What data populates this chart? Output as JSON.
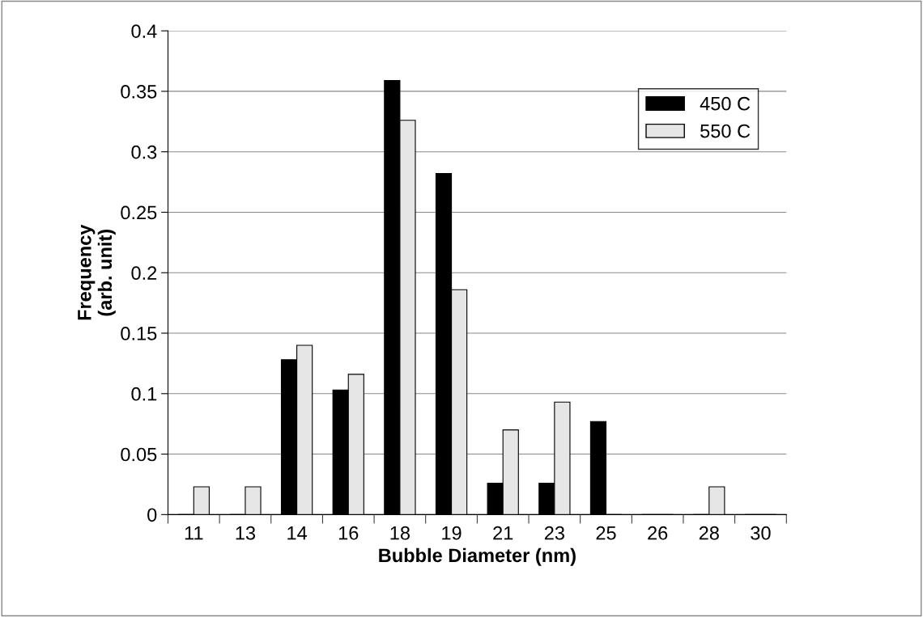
{
  "chart_data": {
    "type": "bar",
    "xlabel": "Bubble Diameter (nm)",
    "ylabel": "Frequency\n(arb. unit)",
    "categories": [
      "11",
      "13",
      "14",
      "16",
      "18",
      "19",
      "21",
      "23",
      "25",
      "26",
      "28",
      "30"
    ],
    "series": [
      {
        "name": "450 C",
        "color": "#000000",
        "values": [
          0,
          0,
          0.128,
          0.103,
          0.359,
          0.282,
          0.026,
          0.026,
          0.077,
          0,
          0,
          0
        ]
      },
      {
        "name": "550 C",
        "color": "#e6e6e6",
        "values": [
          0.023,
          0.023,
          0.14,
          0.116,
          0.326,
          0.186,
          0.07,
          0.093,
          0,
          0,
          0.023,
          0
        ]
      }
    ],
    "ylim": [
      0,
      0.4
    ],
    "yticks": [
      0,
      0.05,
      0.1,
      0.15,
      0.2,
      0.25,
      0.3,
      0.35,
      0.4
    ],
    "grid": "y",
    "legend": "top right"
  }
}
